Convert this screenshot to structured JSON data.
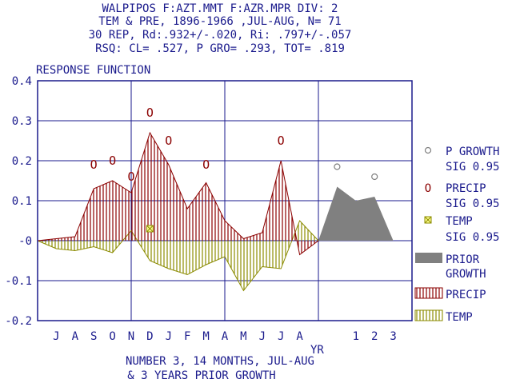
{
  "header": {
    "line1": "WALPIPOS  F:AZT.MMT  F:AZR.MPR  DIV:  2",
    "line2": "TEM &  PRE, 1896-1966 ,JUL-AUG, N= 71",
    "line3": "30 REP, Rd:.932+/-.020, Ri:  .797+/-.057",
    "line4": "RSQ: CL= .527, P GRO= .293, TOT= .819"
  },
  "footer": {
    "line1": "NUMBER  3, 14 MONTHS, JUL-AUG",
    "line2": "& 3 YEARS PRIOR GROWTH"
  },
  "colors": {
    "title": "#1a1a8c",
    "axis": "#1a1a8c",
    "grid": "#1a1a8c",
    "precip": "#8b0000",
    "temp": "#8b8b00",
    "prior_growth": "#808080",
    "p_growth_marker": "#808080"
  },
  "chart_data": {
    "type": "area",
    "title": "RESPONSE FUNCTION",
    "xlabel": "",
    "ylabel": "",
    "ylim": [
      -0.2,
      0.4
    ],
    "y_ticks": [
      "0.4",
      "0.3",
      "0.2",
      "0.1",
      "-0",
      "-0.1",
      "-0.2"
    ],
    "y_tick_values": [
      0.4,
      0.3,
      0.2,
      0.1,
      0,
      -0.1,
      -0.2
    ],
    "month_ticks": [
      "J",
      "A",
      "S",
      "O",
      "N",
      "D",
      "J",
      "F",
      "M",
      "A",
      "M",
      "J",
      "J",
      "A"
    ],
    "prior_ticks": [
      "1",
      "2",
      "3"
    ],
    "prior_axis_label": "YR",
    "grid": true,
    "legend_position": "right",
    "legend": [
      {
        "symbol": "○",
        "label": "P GROWTH",
        "sub": "SIG 0.95"
      },
      {
        "symbol": "O",
        "label": "PRECIP",
        "sub": "SIG 0.95"
      },
      {
        "symbol": "⊠",
        "label": "TEMP",
        "sub": "SIG 0.95"
      },
      {
        "symbol": "",
        "label": "PRIOR",
        "sub": "GROWTH"
      },
      {
        "symbol": "",
        "label": "PRECIP",
        "sub": ""
      },
      {
        "symbol": "",
        "label": "TEMP",
        "sub": ""
      }
    ],
    "series": [
      {
        "name": "PRECIP",
        "x": [
          0,
          1,
          2,
          3,
          4,
          5,
          6,
          7,
          8,
          9,
          10,
          11,
          12,
          13,
          14,
          15
        ],
        "values": [
          0,
          0.005,
          0.01,
          0.13,
          0.15,
          0.12,
          0.27,
          0.19,
          0.08,
          0.145,
          0.05,
          0.005,
          0.02,
          0.2,
          -0.035,
          0
        ]
      },
      {
        "name": "TEMP",
        "x": [
          0,
          1,
          2,
          3,
          4,
          5,
          6,
          7,
          8,
          9,
          10,
          11,
          12,
          13,
          14,
          15
        ],
        "values": [
          0,
          -0.02,
          -0.025,
          -0.015,
          -0.03,
          0.025,
          -0.05,
          -0.07,
          -0.085,
          -0.06,
          -0.04,
          -0.125,
          -0.065,
          -0.07,
          0.05,
          0
        ]
      },
      {
        "name": "PRIOR GROWTH",
        "x": [
          15,
          16,
          17,
          18,
          19
        ],
        "values": [
          0,
          0.135,
          0.1,
          0.11,
          0
        ]
      }
    ],
    "significance": {
      "precip": [
        {
          "x": 3,
          "y": 0.19
        },
        {
          "x": 4,
          "y": 0.2
        },
        {
          "x": 5,
          "y": 0.16
        },
        {
          "x": 6,
          "y": 0.32
        },
        {
          "x": 7,
          "y": 0.25
        },
        {
          "x": 9,
          "y": 0.19
        },
        {
          "x": 13,
          "y": 0.25
        }
      ],
      "temp": [
        {
          "x": 6,
          "y": 0.03
        }
      ],
      "p_growth": [
        {
          "x": 16,
          "y": 0.185
        },
        {
          "x": 18,
          "y": 0.16
        }
      ]
    }
  }
}
